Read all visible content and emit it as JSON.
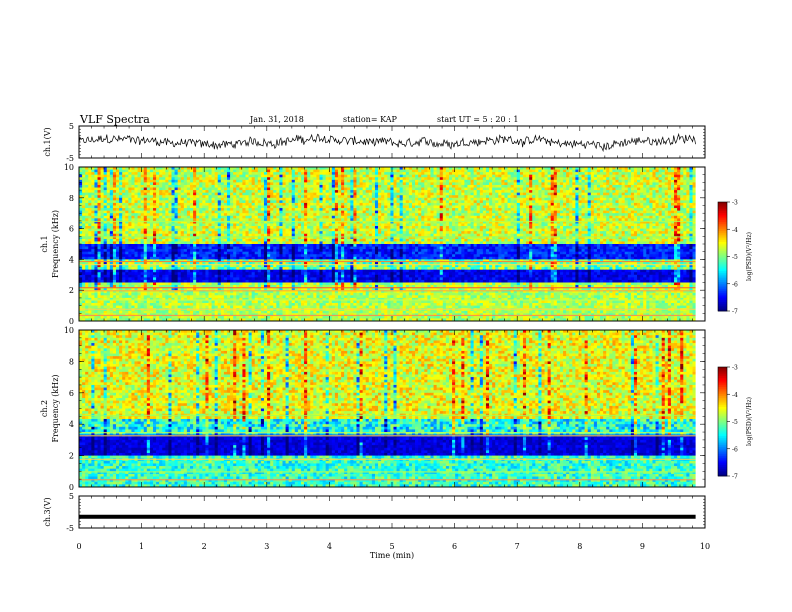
{
  "header": {
    "title": "VLF Spectra",
    "date": "Jan. 31, 2018",
    "station": "station= KAP",
    "start_ut": "start UT =  5 : 20 : 1"
  },
  "chart_data": [
    {
      "type": "line",
      "panel": "ch1-waveform",
      "ylabel": "ch.1(V)",
      "ylim": [
        -5,
        5
      ],
      "yticks": [
        "5",
        "-5"
      ],
      "xlim": [
        0,
        10
      ],
      "description_values": "noisy waveform fluctuating roughly between -3 and 3 V"
    },
    {
      "type": "heatmap",
      "panel": "ch1-spectrogram",
      "ylabel_line1": "ch.1",
      "ylabel_line2": "Frequency (kHz)",
      "ylim": [
        0,
        10
      ],
      "yticks": [
        "0",
        "2",
        "4",
        "6",
        "8",
        "10"
      ],
      "xlim": [
        0,
        9.85
      ],
      "colorbar": {
        "label": "log(PSD)(V²/Hz)",
        "ticks": [
          "-3",
          "-4",
          "-5",
          "-6",
          "-7"
        ],
        "range": [
          -7,
          -3
        ]
      }
    },
    {
      "type": "heatmap",
      "panel": "ch2-spectrogram",
      "ylabel_line1": "ch.2",
      "ylabel_line2": "Frequency (kHz)",
      "ylim": [
        0,
        10
      ],
      "yticks": [
        "0",
        "2",
        "4",
        "6",
        "8",
        "10"
      ],
      "xlim": [
        0,
        9.85
      ],
      "colorbar": {
        "label": "log(PSD)(V²/Hz)",
        "ticks": [
          "-3",
          "-4",
          "-5",
          "-6",
          "-7"
        ],
        "range": [
          -7,
          -3
        ]
      }
    },
    {
      "type": "line",
      "panel": "ch3-waveform",
      "ylabel": "ch.3(V)",
      "ylim": [
        -5,
        5
      ],
      "yticks": [
        "5",
        "-5"
      ],
      "xlim": [
        0,
        10
      ],
      "constant_value": -1.5,
      "xlabel": "Time (min)",
      "xticks": [
        "0",
        "1",
        "2",
        "3",
        "4",
        "5",
        "6",
        "7",
        "8",
        "9",
        "10"
      ]
    }
  ]
}
